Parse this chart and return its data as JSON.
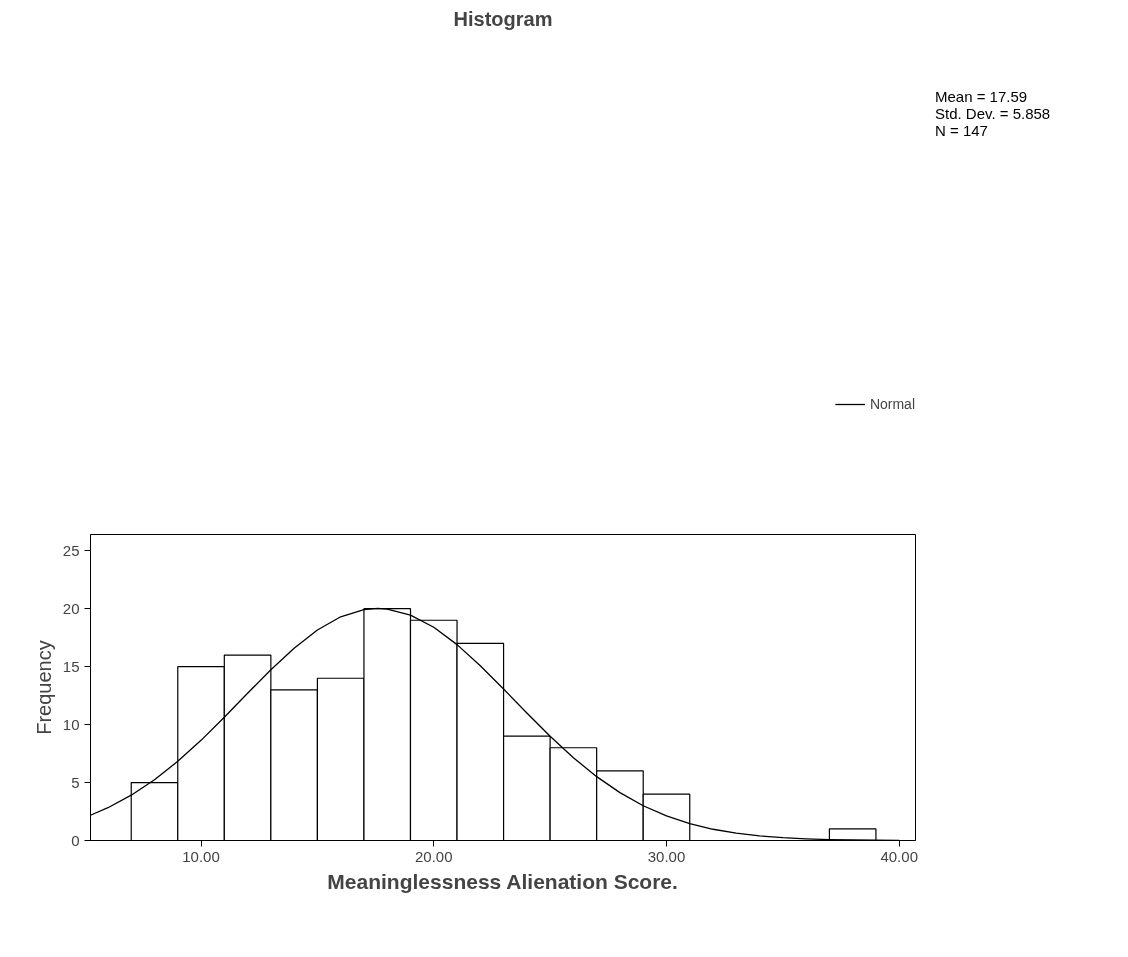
{
  "chart_data": {
    "type": "histogram",
    "title": "Histogram",
    "xlabel": "Meaninglessness Alienation Score.",
    "ylabel": "Frequency",
    "bins": [
      7,
      9,
      11,
      13,
      15,
      17,
      19,
      21,
      23,
      25,
      27,
      29,
      31,
      33,
      35,
      37,
      39
    ],
    "values": [
      5,
      15,
      16,
      13,
      14,
      20,
      19,
      17,
      9,
      8,
      6,
      4,
      0,
      0,
      0,
      1
    ],
    "color": "#ffffff",
    "series": [
      {
        "name": "Normal",
        "type": "line",
        "color": "#000000",
        "x": [
          5.25,
          6,
          7,
          8,
          9,
          10,
          11,
          12,
          13,
          14,
          15,
          16,
          17,
          17.59,
          18,
          19,
          20,
          21,
          22,
          23,
          24,
          25,
          26,
          27,
          28,
          29,
          30,
          31,
          32,
          33,
          34,
          35,
          36,
          37,
          38,
          39,
          40
        ],
        "values": [
          2.18,
          2.83,
          3.91,
          5.24,
          6.83,
          8.64,
          10.63,
          12.7,
          14.73,
          16.59,
          18.16,
          19.3,
          19.92,
          20.02,
          19.97,
          19.45,
          18.4,
          16.9,
          15.08,
          13.07,
          11.0,
          9.0,
          7.14,
          5.51,
          4.13,
          3.0,
          2.12,
          1.46,
          0.97,
          0.63,
          0.4,
          0.24,
          0.14,
          0.08,
          0.05,
          0.03,
          0.01
        ]
      }
    ],
    "annotations": [
      "Mean = 17.59",
      "Std. Dev. = 5.858",
      "N = 147"
    ],
    "xlim": [
      5.25,
      40.7
    ],
    "ylim": [
      0,
      26.4
    ],
    "xticks": [
      {
        "value": 10,
        "label": "10.00"
      },
      {
        "value": 20,
        "label": "20.00"
      },
      {
        "value": 30,
        "label": "30.00"
      },
      {
        "value": 40,
        "label": "40.00"
      }
    ],
    "yticks": [
      0,
      5,
      10,
      15,
      20,
      25
    ],
    "grid": false,
    "legend": "top right"
  }
}
